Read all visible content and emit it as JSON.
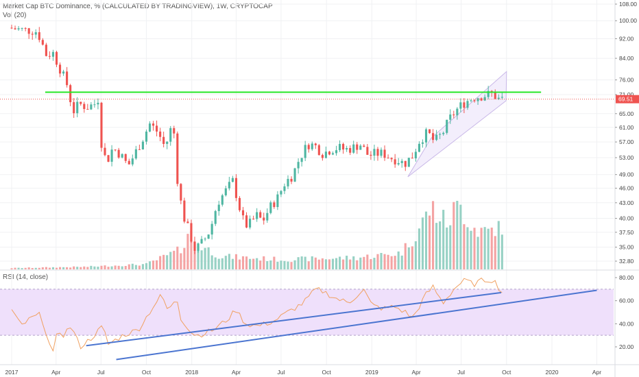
{
  "header": {
    "title": "Market Cap BTC Dominance, % (CALCULATED BY TRADINGVIEW), 1W, CRYPTOCAP",
    "vol_label": "Vol (20)",
    "rsi_label": "RSI (14, close)"
  },
  "colors": {
    "up": "#4fb6a2",
    "down": "#ef5350",
    "vol_up": "#97d1c4",
    "vol_down": "#f4a3a3",
    "rsi_line": "#f0a060",
    "rsi_band": "#efe0fb",
    "trendline": "#4a74d0",
    "resistance": "#26e626",
    "last_price": "#ef5350",
    "channel": "#c9b8e8"
  },
  "chart_data": [
    {
      "type": "candlestick",
      "title": "Market Cap BTC Dominance, % (CALCULATED BY TRADINGVIEW), 1W, CRYPTOCAP",
      "y_axis": {
        "scale": "log",
        "range": [
          32.0,
          109.0
        ],
        "ticks": [
          "108.00",
          "100.00",
          "92.00",
          "84.00",
          "76.00",
          "71.00",
          "65.00",
          "61.00",
          "57.00",
          "53.00",
          "49.00",
          "46.00",
          "43.00",
          "40.00",
          "37.50",
          "35.00",
          "32.80"
        ]
      },
      "x_axis": {
        "range": [
          "2017-01-01",
          "2020-05-15"
        ],
        "ticks": [
          "2017",
          "Apr",
          "Jul",
          "Oct",
          "2018",
          "Apr",
          "Jul",
          "Oct",
          "2019",
          "Apr",
          "Jul",
          "Oct",
          "2020",
          "Apr"
        ]
      },
      "last_price": "69.51",
      "candles_ohlc_waypoints": [
        [
          "2017-01-01",
          96.8
        ],
        [
          "2017-02-01",
          95.8
        ],
        [
          "2017-02-25",
          95.5
        ],
        [
          "2017-03-05",
          93.0
        ],
        [
          "2017-03-20",
          85.0
        ],
        [
          "2017-04-01",
          86.5
        ],
        [
          "2017-04-15",
          80.5
        ],
        [
          "2017-05-01",
          74.0
        ],
        [
          "2017-05-12",
          65.5
        ],
        [
          "2017-05-25",
          68.0
        ],
        [
          "2017-06-10",
          67.0
        ],
        [
          "2017-06-25",
          68.0
        ],
        [
          "2017-07-01",
          71.5
        ],
        [
          "2017-07-10",
          55.0
        ],
        [
          "2017-07-20",
          52.0
        ],
        [
          "2017-08-01",
          55.5
        ],
        [
          "2017-08-15",
          54.0
        ],
        [
          "2017-09-01",
          51.0
        ],
        [
          "2017-09-15",
          54.0
        ],
        [
          "2017-10-01",
          58.0
        ],
        [
          "2017-10-15",
          62.0
        ],
        [
          "2017-11-01",
          59.5
        ],
        [
          "2017-11-15",
          55.5
        ],
        [
          "2017-12-01",
          62.5
        ],
        [
          "2017-12-10",
          48.0
        ],
        [
          "2017-12-20",
          41.0
        ],
        [
          "2018-01-05",
          37.0
        ],
        [
          "2018-01-15",
          34.5
        ],
        [
          "2018-02-01",
          36.0
        ],
        [
          "2018-02-15",
          38.0
        ],
        [
          "2018-03-01",
          43.0
        ],
        [
          "2018-03-15",
          45.0
        ],
        [
          "2018-04-01",
          47.5
        ],
        [
          "2018-04-10",
          44.0
        ],
        [
          "2018-04-20",
          40.0
        ],
        [
          "2018-05-01",
          38.5
        ],
        [
          "2018-05-20",
          40.5
        ],
        [
          "2018-06-01",
          39.5
        ],
        [
          "2018-06-15",
          42.0
        ],
        [
          "2018-07-01",
          44.0
        ],
        [
          "2018-07-15",
          47.0
        ],
        [
          "2018-08-01",
          49.0
        ],
        [
          "2018-08-15",
          53.0
        ],
        [
          "2018-09-01",
          56.5
        ],
        [
          "2018-09-15",
          56.0
        ],
        [
          "2018-10-01",
          54.0
        ],
        [
          "2018-10-15",
          55.0
        ],
        [
          "2018-11-01",
          55.5
        ],
        [
          "2018-11-15",
          55.0
        ],
        [
          "2018-12-01",
          55.5
        ],
        [
          "2018-12-15",
          56.5
        ],
        [
          "2019-01-01",
          53.5
        ],
        [
          "2019-01-15",
          54.0
        ],
        [
          "2019-02-01",
          54.0
        ],
        [
          "2019-02-15",
          53.0
        ],
        [
          "2019-03-01",
          52.5
        ],
        [
          "2019-03-15",
          51.5
        ],
        [
          "2019-04-01",
          53.5
        ],
        [
          "2019-04-15",
          57.5
        ],
        [
          "2019-05-01",
          59.5
        ],
        [
          "2019-05-15",
          57.0
        ],
        [
          "2019-06-01",
          59.5
        ],
        [
          "2019-06-15",
          63.5
        ],
        [
          "2019-07-01",
          66.5
        ],
        [
          "2019-07-15",
          68.5
        ],
        [
          "2019-08-01",
          70.0
        ],
        [
          "2019-08-15",
          70.5
        ],
        [
          "2019-09-01",
          71.0
        ],
        [
          "2019-09-10",
          71.5
        ],
        [
          "2019-09-20",
          69.5
        ],
        [
          "2019-09-26",
          69.5
        ]
      ],
      "horizontal_resistance": 71.8,
      "ascending_channel": {
        "lower": [
          [
            "2019-03-15",
            48.5
          ],
          [
            "2019-09-30",
            69.0
          ]
        ],
        "upper": [
          [
            "2019-05-01",
            58.0
          ],
          [
            "2019-10-01",
            79.0
          ]
        ]
      }
    },
    {
      "type": "bar",
      "title": "Vol (20)",
      "note": "volume histogram, relative heights",
      "values_waypoints": [
        [
          "2017-01-01",
          0.02
        ],
        [
          "2017-06-01",
          0.04
        ],
        [
          "2017-10-01",
          0.08
        ],
        [
          "2017-12-10",
          0.3
        ],
        [
          "2017-12-25",
          0.6
        ],
        [
          "2018-01-10",
          0.4
        ],
        [
          "2018-03-01",
          0.2
        ],
        [
          "2018-07-01",
          0.15
        ],
        [
          "2018-12-01",
          0.18
        ],
        [
          "2019-03-01",
          0.25
        ],
        [
          "2019-04-01",
          0.55
        ],
        [
          "2019-05-01",
          0.95
        ],
        [
          "2019-06-01",
          0.7
        ],
        [
          "2019-06-25",
          1.0
        ],
        [
          "2019-08-01",
          0.6
        ],
        [
          "2019-09-20",
          0.65
        ],
        [
          "2019-09-27",
          0.1
        ]
      ]
    },
    {
      "type": "line",
      "title": "RSI (14, close)",
      "y_axis": {
        "range": [
          10,
          85
        ],
        "ticks": [
          "80.00",
          "60.00",
          "40.00",
          "20.00"
        ]
      },
      "bands": [
        30,
        70
      ],
      "values_waypoints": [
        [
          "2017-01-01",
          52
        ],
        [
          "2017-01-20",
          38
        ],
        [
          "2017-02-10",
          45
        ],
        [
          "2017-03-01",
          48
        ],
        [
          "2017-03-15",
          28
        ],
        [
          "2017-03-25",
          12
        ],
        [
          "2017-04-05",
          35
        ],
        [
          "2017-04-15",
          30
        ],
        [
          "2017-05-01",
          38
        ],
        [
          "2017-05-20",
          20
        ],
        [
          "2017-06-10",
          27
        ],
        [
          "2017-07-05",
          38
        ],
        [
          "2017-07-15",
          22
        ],
        [
          "2017-08-15",
          30
        ],
        [
          "2017-09-15",
          35
        ],
        [
          "2017-10-15",
          55
        ],
        [
          "2017-11-01",
          65
        ],
        [
          "2017-11-15",
          50
        ],
        [
          "2017-12-01",
          64
        ],
        [
          "2017-12-10",
          45
        ],
        [
          "2018-01-01",
          32
        ],
        [
          "2018-01-15",
          30
        ],
        [
          "2018-02-15",
          35
        ],
        [
          "2018-03-15",
          44
        ],
        [
          "2018-04-01",
          52
        ],
        [
          "2018-04-20",
          40
        ],
        [
          "2018-05-15",
          38
        ],
        [
          "2018-06-15",
          42
        ],
        [
          "2018-07-15",
          50
        ],
        [
          "2018-08-15",
          58
        ],
        [
          "2018-09-10",
          70
        ],
        [
          "2018-09-25",
          68
        ],
        [
          "2018-10-20",
          62
        ],
        [
          "2018-11-15",
          58
        ],
        [
          "2018-12-15",
          70
        ],
        [
          "2019-01-01",
          56
        ],
        [
          "2019-01-25",
          53
        ],
        [
          "2019-02-15",
          55
        ],
        [
          "2019-03-10",
          50
        ],
        [
          "2019-03-25",
          45
        ],
        [
          "2019-04-20",
          65
        ],
        [
          "2019-05-05",
          72
        ],
        [
          "2019-05-25",
          58
        ],
        [
          "2019-06-20",
          72
        ],
        [
          "2019-07-10",
          78
        ],
        [
          "2019-07-25",
          74
        ],
        [
          "2019-08-15",
          78
        ],
        [
          "2019-09-05",
          78
        ],
        [
          "2019-09-20",
          68
        ],
        [
          "2019-09-27",
          65
        ]
      ],
      "trendlines": [
        [
          [
            "2017-06-01",
            21
          ],
          [
            "2019-09-20",
            67
          ]
        ],
        [
          [
            "2017-08-01",
            9
          ],
          [
            "2020-04-01",
            69
          ]
        ]
      ]
    }
  ]
}
